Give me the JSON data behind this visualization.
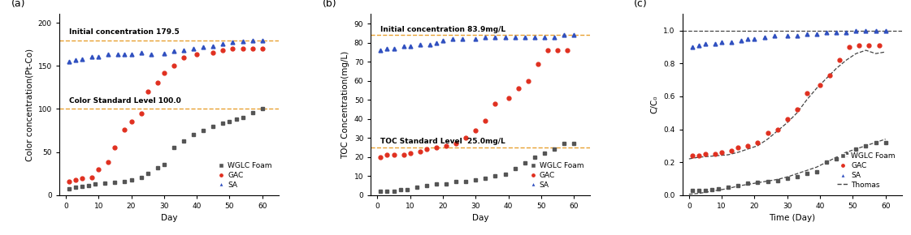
{
  "panel_a": {
    "title_label": "(a)",
    "xlabel": "Day",
    "ylabel": "Color concentration(Pt-Co)",
    "ylim": [
      0,
      210
    ],
    "xlim": [
      -2,
      65
    ],
    "yticks": [
      0,
      50,
      100,
      150,
      200
    ],
    "xticks": [
      0,
      10,
      20,
      30,
      40,
      50,
      60
    ],
    "hline1": {
      "y": 179.5,
      "label": "Initial concentration 179.5",
      "color": "#E8A030",
      "linestyle": "--"
    },
    "hline2": {
      "y": 100.0,
      "label": "Color Standard Level 100.0",
      "color": "#E8A030",
      "linestyle": "--"
    },
    "WGLC_x": [
      1,
      3,
      5,
      7,
      9,
      12,
      15,
      18,
      20,
      23,
      25,
      28,
      30,
      33,
      36,
      39,
      42,
      45,
      48,
      50,
      52,
      54,
      57,
      60
    ],
    "WGLC_y": [
      7,
      9,
      10,
      11,
      13,
      14,
      15,
      16,
      18,
      20,
      25,
      32,
      35,
      55,
      63,
      70,
      75,
      80,
      83,
      85,
      88,
      90,
      96,
      100
    ],
    "GAC_x": [
      1,
      3,
      5,
      8,
      10,
      13,
      15,
      18,
      20,
      23,
      25,
      28,
      30,
      33,
      36,
      40,
      45,
      48,
      51,
      54,
      57,
      60
    ],
    "GAC_y": [
      16,
      18,
      19,
      20,
      30,
      38,
      55,
      76,
      85,
      95,
      120,
      130,
      142,
      150,
      160,
      163,
      165,
      168,
      170,
      170,
      170,
      170
    ],
    "SA_x": [
      1,
      3,
      5,
      8,
      10,
      13,
      16,
      18,
      20,
      23,
      26,
      30,
      33,
      36,
      39,
      42,
      45,
      48,
      51,
      54,
      57,
      60
    ],
    "SA_y": [
      155,
      157,
      158,
      161,
      161,
      163,
      163,
      163,
      163,
      165,
      163,
      164,
      167,
      168,
      170,
      172,
      173,
      176,
      177,
      178,
      179,
      179
    ],
    "WGLC_color": "#555555",
    "GAC_color": "#E03020",
    "SA_color": "#3050C0"
  },
  "panel_b": {
    "title_label": "(b)",
    "xlabel": "Day",
    "ylabel": "TOC Concentration(mg/L)",
    "ylim": [
      0,
      95
    ],
    "xlim": [
      -2,
      65
    ],
    "yticks": [
      0,
      10,
      20,
      30,
      40,
      50,
      60,
      70,
      80,
      90
    ],
    "xticks": [
      0,
      10,
      20,
      30,
      40,
      50,
      60
    ],
    "hline1": {
      "y": 83.9,
      "label": "Initial concentration 83.9mg/L",
      "color": "#E8A030",
      "linestyle": "--"
    },
    "hline2": {
      "y": 25.0,
      "label": "TOC Standard Level  25.0mg/L",
      "color": "#E8A030",
      "linestyle": "--"
    },
    "WGLC_x": [
      1,
      3,
      5,
      7,
      9,
      12,
      15,
      18,
      21,
      24,
      27,
      30,
      33,
      36,
      39,
      42,
      45,
      48,
      51,
      54,
      57,
      60
    ],
    "WGLC_y": [
      2,
      2,
      2,
      3,
      3,
      4,
      5,
      6,
      6,
      7,
      7,
      8,
      9,
      10,
      11,
      14,
      17,
      20,
      22,
      24,
      27,
      27
    ],
    "GAC_x": [
      1,
      3,
      5,
      8,
      10,
      13,
      15,
      18,
      21,
      24,
      27,
      30,
      33,
      36,
      40,
      43,
      46,
      49,
      52,
      55,
      58
    ],
    "GAC_y": [
      20,
      21,
      21,
      21,
      22,
      23,
      24,
      25,
      26,
      27,
      30,
      34,
      39,
      48,
      51,
      56,
      60,
      69,
      76,
      76,
      76
    ],
    "SA_x": [
      1,
      3,
      5,
      8,
      10,
      13,
      16,
      18,
      20,
      23,
      26,
      30,
      33,
      36,
      39,
      42,
      45,
      48,
      51,
      54,
      57,
      60
    ],
    "SA_y": [
      76,
      77,
      77,
      78,
      78,
      79,
      79,
      80,
      81,
      82,
      82,
      82,
      83,
      83,
      83,
      83,
      83,
      83,
      83,
      83,
      84,
      84
    ],
    "WGLC_color": "#555555",
    "GAC_color": "#E03020",
    "SA_color": "#3050C0"
  },
  "panel_c": {
    "title_label": "(c)",
    "xlabel": "Time (Day)",
    "ylabel": "C/C₀",
    "ylim": [
      0.0,
      1.1
    ],
    "xlim": [
      -2,
      65
    ],
    "yticks": [
      0.0,
      0.2,
      0.4,
      0.6,
      0.8,
      1.0
    ],
    "xticks": [
      0,
      10,
      20,
      30,
      40,
      50,
      60
    ],
    "hline1": {
      "y": 1.0,
      "color": "#444444",
      "linestyle": "--"
    },
    "WGLC_x": [
      1,
      3,
      5,
      7,
      9,
      12,
      15,
      18,
      21,
      24,
      27,
      30,
      33,
      36,
      39,
      42,
      45,
      48,
      51,
      54,
      57,
      60
    ],
    "WGLC_y": [
      0.03,
      0.03,
      0.03,
      0.035,
      0.04,
      0.05,
      0.06,
      0.07,
      0.075,
      0.08,
      0.085,
      0.1,
      0.11,
      0.13,
      0.14,
      0.2,
      0.22,
      0.25,
      0.28,
      0.3,
      0.32,
      0.32
    ],
    "GAC_x": [
      1,
      3,
      5,
      8,
      10,
      13,
      15,
      18,
      21,
      24,
      27,
      30,
      33,
      36,
      40,
      43,
      46,
      49,
      52,
      55,
      58
    ],
    "GAC_y": [
      0.24,
      0.24,
      0.25,
      0.25,
      0.26,
      0.27,
      0.29,
      0.3,
      0.32,
      0.38,
      0.4,
      0.46,
      0.52,
      0.62,
      0.67,
      0.73,
      0.82,
      0.9,
      0.91,
      0.91,
      0.91
    ],
    "SA_x": [
      1,
      3,
      5,
      8,
      10,
      13,
      16,
      18,
      20,
      23,
      26,
      30,
      33,
      36,
      39,
      42,
      45,
      48,
      51,
      54,
      57,
      60
    ],
    "SA_y": [
      0.9,
      0.91,
      0.92,
      0.92,
      0.93,
      0.93,
      0.94,
      0.95,
      0.95,
      0.96,
      0.97,
      0.97,
      0.97,
      0.98,
      0.98,
      0.99,
      0.99,
      0.99,
      1.0,
      1.0,
      1.0,
      1.0
    ],
    "thomas_WGLC_x": [
      0,
      3,
      6,
      9,
      12,
      15,
      18,
      21,
      24,
      27,
      30,
      33,
      36,
      39,
      42,
      45,
      48,
      51,
      54,
      57,
      60
    ],
    "thomas_WGLC_y": [
      0.005,
      0.01,
      0.02,
      0.03,
      0.04,
      0.055,
      0.065,
      0.075,
      0.085,
      0.095,
      0.11,
      0.13,
      0.15,
      0.17,
      0.2,
      0.23,
      0.26,
      0.28,
      0.3,
      0.32,
      0.34
    ],
    "thomas_GAC_x": [
      0,
      3,
      6,
      9,
      12,
      15,
      18,
      21,
      24,
      27,
      30,
      33,
      36,
      39,
      42,
      45,
      48,
      51,
      54,
      57,
      60
    ],
    "thomas_GAC_y": [
      0.22,
      0.23,
      0.235,
      0.24,
      0.245,
      0.26,
      0.28,
      0.3,
      0.34,
      0.39,
      0.44,
      0.5,
      0.58,
      0.65,
      0.71,
      0.77,
      0.82,
      0.86,
      0.88,
      0.86,
      0.87
    ],
    "WGLC_color": "#555555",
    "GAC_color": "#E03020",
    "SA_color": "#3050C0",
    "thomas_color": "#444444"
  },
  "bg_color": "#ffffff",
  "legend_fontsize": 6.5,
  "axis_fontsize": 7.5,
  "tick_fontsize": 6.5,
  "label_fontsize": 9
}
